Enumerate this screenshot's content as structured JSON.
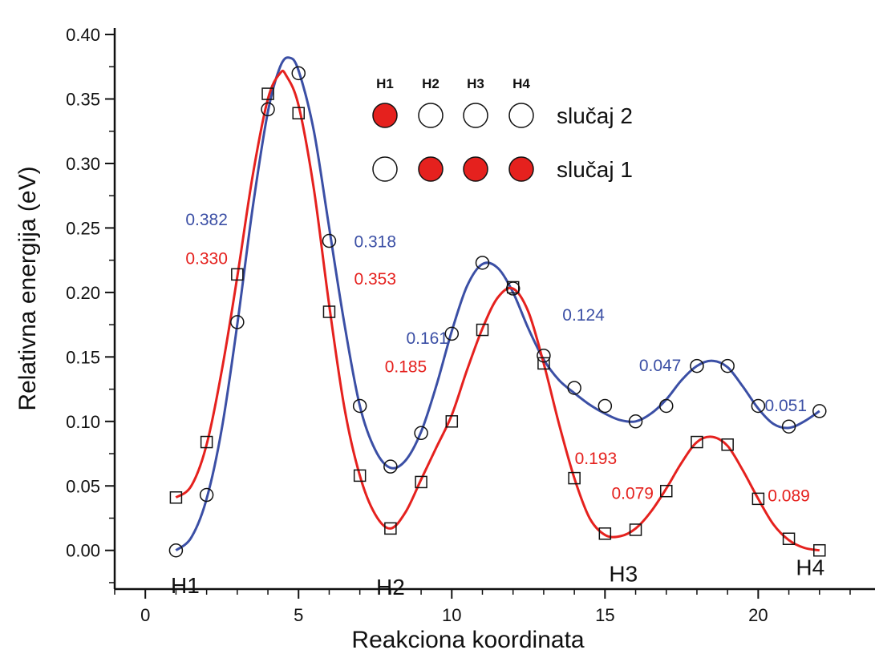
{
  "chart_data": {
    "type": "line",
    "title": "",
    "xlabel": "Reakciona koordinata",
    "ylabel": "Relativna energija (eV)",
    "xlim": [
      -1,
      23
    ],
    "ylim": [
      -0.03,
      0.405
    ],
    "xticks": [
      0,
      5,
      10,
      15,
      20
    ],
    "yticks": [
      0.0,
      0.05,
      0.1,
      0.15,
      0.2,
      0.25,
      0.3,
      0.35,
      0.4
    ],
    "ytick_labels": [
      "0.00",
      "0.05",
      "0.10",
      "0.15",
      "0.20",
      "0.25",
      "0.30",
      "0.35",
      "0.40"
    ],
    "grid": false,
    "series": [
      {
        "name": "slučaj 2",
        "color": "#3b4fa5",
        "marker": "circle",
        "points": [
          {
            "x": 1,
            "y": 0.0
          },
          {
            "x": 2,
            "y": 0.043
          },
          {
            "x": 3,
            "y": 0.177
          },
          {
            "x": 4,
            "y": 0.342
          },
          {
            "x": 5,
            "y": 0.37
          },
          {
            "x": 6,
            "y": 0.24
          },
          {
            "x": 7,
            "y": 0.112
          },
          {
            "x": 8,
            "y": 0.065
          },
          {
            "x": 9,
            "y": 0.091
          },
          {
            "x": 10,
            "y": 0.168
          },
          {
            "x": 11,
            "y": 0.223
          },
          {
            "x": 12,
            "y": 0.203
          },
          {
            "x": 13,
            "y": 0.151
          },
          {
            "x": 14,
            "y": 0.126
          },
          {
            "x": 15,
            "y": 0.112
          },
          {
            "x": 16,
            "y": 0.1
          },
          {
            "x": 17,
            "y": 0.112
          },
          {
            "x": 18,
            "y": 0.143
          },
          {
            "x": 19,
            "y": 0.143
          },
          {
            "x": 20,
            "y": 0.112
          },
          {
            "x": 21,
            "y": 0.096
          },
          {
            "x": 22,
            "y": 0.108
          }
        ],
        "curve": [
          [
            1,
            0.0
          ],
          [
            1.5,
            0.01
          ],
          [
            2,
            0.04
          ],
          [
            2.5,
            0.095
          ],
          [
            3,
            0.175
          ],
          [
            3.5,
            0.265
          ],
          [
            4,
            0.34
          ],
          [
            4.4,
            0.375
          ],
          [
            4.7,
            0.382
          ],
          [
            5,
            0.372
          ],
          [
            5.5,
            0.325
          ],
          [
            6,
            0.25
          ],
          [
            6.5,
            0.175
          ],
          [
            7,
            0.112
          ],
          [
            7.5,
            0.078
          ],
          [
            8,
            0.064
          ],
          [
            8.5,
            0.07
          ],
          [
            9,
            0.092
          ],
          [
            9.5,
            0.128
          ],
          [
            10,
            0.17
          ],
          [
            10.5,
            0.205
          ],
          [
            11,
            0.222
          ],
          [
            11.5,
            0.219
          ],
          [
            12,
            0.2
          ],
          [
            12.5,
            0.172
          ],
          [
            13,
            0.148
          ],
          [
            13.5,
            0.132
          ],
          [
            14,
            0.122
          ],
          [
            14.5,
            0.113
          ],
          [
            15,
            0.106
          ],
          [
            15.5,
            0.101
          ],
          [
            16,
            0.1
          ],
          [
            16.5,
            0.106
          ],
          [
            17,
            0.117
          ],
          [
            17.5,
            0.132
          ],
          [
            18,
            0.143
          ],
          [
            18.5,
            0.147
          ],
          [
            19,
            0.142
          ],
          [
            19.5,
            0.127
          ],
          [
            20,
            0.11
          ],
          [
            20.5,
            0.098
          ],
          [
            21,
            0.095
          ],
          [
            21.5,
            0.1
          ],
          [
            22,
            0.108
          ]
        ]
      },
      {
        "name": "slučaj 1",
        "color": "#e5211e",
        "marker": "square",
        "points": [
          {
            "x": 1,
            "y": 0.041
          },
          {
            "x": 2,
            "y": 0.084
          },
          {
            "x": 3,
            "y": 0.214
          },
          {
            "x": 4,
            "y": 0.354
          },
          {
            "x": 5,
            "y": 0.339
          },
          {
            "x": 6,
            "y": 0.185
          },
          {
            "x": 7,
            "y": 0.058
          },
          {
            "x": 8,
            "y": 0.017
          },
          {
            "x": 9,
            "y": 0.053
          },
          {
            "x": 10,
            "y": 0.1
          },
          {
            "x": 11,
            "y": 0.171
          },
          {
            "x": 12,
            "y": 0.204
          },
          {
            "x": 13,
            "y": 0.145
          },
          {
            "x": 14,
            "y": 0.056
          },
          {
            "x": 15,
            "y": 0.013
          },
          {
            "x": 16,
            "y": 0.016
          },
          {
            "x": 17,
            "y": 0.046
          },
          {
            "x": 18,
            "y": 0.084
          },
          {
            "x": 19,
            "y": 0.082
          },
          {
            "x": 20,
            "y": 0.04
          },
          {
            "x": 21,
            "y": 0.009
          },
          {
            "x": 22,
            "y": 0.0
          }
        ],
        "curve": [
          [
            1,
            0.041
          ],
          [
            1.5,
            0.05
          ],
          [
            2,
            0.082
          ],
          [
            2.5,
            0.14
          ],
          [
            3,
            0.212
          ],
          [
            3.5,
            0.29
          ],
          [
            4,
            0.35
          ],
          [
            4.4,
            0.37
          ],
          [
            4.6,
            0.368
          ],
          [
            5,
            0.345
          ],
          [
            5.5,
            0.28
          ],
          [
            6,
            0.19
          ],
          [
            6.5,
            0.11
          ],
          [
            7,
            0.058
          ],
          [
            7.5,
            0.028
          ],
          [
            8,
            0.017
          ],
          [
            8.5,
            0.03
          ],
          [
            9,
            0.055
          ],
          [
            9.5,
            0.08
          ],
          [
            10,
            0.105
          ],
          [
            10.5,
            0.14
          ],
          [
            11,
            0.172
          ],
          [
            11.5,
            0.196
          ],
          [
            12,
            0.203
          ],
          [
            12.5,
            0.185
          ],
          [
            13,
            0.145
          ],
          [
            13.5,
            0.098
          ],
          [
            14,
            0.056
          ],
          [
            14.5,
            0.025
          ],
          [
            15,
            0.012
          ],
          [
            15.5,
            0.011
          ],
          [
            16,
            0.017
          ],
          [
            16.5,
            0.03
          ],
          [
            17,
            0.048
          ],
          [
            17.5,
            0.068
          ],
          [
            18,
            0.084
          ],
          [
            18.5,
            0.088
          ],
          [
            19,
            0.081
          ],
          [
            19.5,
            0.062
          ],
          [
            20,
            0.04
          ],
          [
            20.5,
            0.02
          ],
          [
            21,
            0.008
          ],
          [
            21.5,
            0.002
          ],
          [
            22,
            0.0
          ]
        ]
      }
    ],
    "point_labels": [
      {
        "text": "H1",
        "x": 1.3,
        "y": -0.027
      },
      {
        "text": "H2",
        "x": 8.0,
        "y": -0.028
      },
      {
        "text": "H3",
        "x": 15.6,
        "y": -0.018
      },
      {
        "text": "H4",
        "x": 21.7,
        "y": -0.013
      }
    ],
    "annotations": [
      {
        "text": "0.382",
        "color": "#3b4fa5",
        "x": 2.0,
        "y": 0.257
      },
      {
        "text": "0.330",
        "color": "#e5211e",
        "x": 2.0,
        "y": 0.227
      },
      {
        "text": "0.318",
        "color": "#3b4fa5",
        "x": 7.5,
        "y": 0.24
      },
      {
        "text": "0.353",
        "color": "#e5211e",
        "x": 7.5,
        "y": 0.211
      },
      {
        "text": "0.161",
        "color": "#3b4fa5",
        "x": 9.2,
        "y": 0.165
      },
      {
        "text": "0.185",
        "color": "#e5211e",
        "x": 8.5,
        "y": 0.143
      },
      {
        "text": "0.124",
        "color": "#3b4fa5",
        "x": 14.3,
        "y": 0.183
      },
      {
        "text": "0.193",
        "color": "#e5211e",
        "x": 14.7,
        "y": 0.072
      },
      {
        "text": "0.047",
        "color": "#3b4fa5",
        "x": 16.8,
        "y": 0.144
      },
      {
        "text": "0.079",
        "color": "#e5211e",
        "x": 15.9,
        "y": 0.045
      },
      {
        "text": "0.089",
        "color": "#e5211e",
        "x": 21.0,
        "y": 0.043
      },
      {
        "text": "0.051",
        "color": "#3b4fa5",
        "x": 20.9,
        "y": 0.113
      }
    ],
    "legend": {
      "placement": "top-center",
      "headers": [
        "H1",
        "H2",
        "H3",
        "H4"
      ],
      "rows": [
        {
          "label": "slučaj 2",
          "filled": [
            true,
            false,
            false,
            false
          ]
        },
        {
          "label": "slučaj 1",
          "filled": [
            false,
            true,
            true,
            true
          ]
        }
      ],
      "fill_color": "#e5211e"
    }
  }
}
